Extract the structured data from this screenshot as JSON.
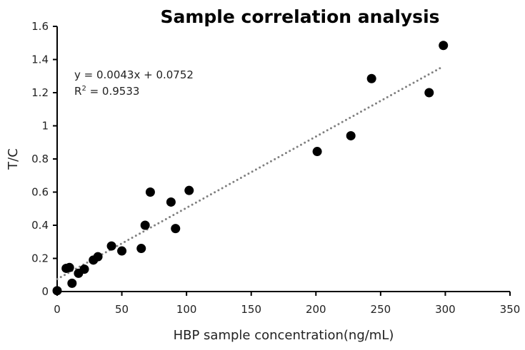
{
  "chart_data": {
    "type": "scatter",
    "title": "Sample correlation analysis",
    "xlabel": "HBP sample concentration(ng/mL)",
    "ylabel": "T/C",
    "xlim": [
      0,
      350
    ],
    "ylim": [
      0,
      1.6
    ],
    "xticks": [
      0,
      50,
      100,
      150,
      200,
      250,
      300,
      350
    ],
    "yticks": [
      "0",
      "0.2",
      "0.4",
      "0.6",
      "0.8",
      "1",
      "1.2",
      "1.4",
      "1.6"
    ],
    "grid": false,
    "marker_color": "#000000",
    "trendline_color": "#808080",
    "trendline": {
      "slope": 0.0043,
      "intercept": 0.0752,
      "x_range": [
        0,
        298
      ],
      "style": "dotted"
    },
    "annotation": {
      "equation": "y = 0.0043x + 0.0752",
      "r2_prefix": "R",
      "r2_sup": "2",
      "r2_value": " = 0.9533"
    },
    "points": [
      [
        0,
        0.005
      ],
      [
        7,
        0.14
      ],
      [
        9.5,
        0.145
      ],
      [
        11.5,
        0.05
      ],
      [
        16.5,
        0.11
      ],
      [
        21,
        0.135
      ],
      [
        28,
        0.19
      ],
      [
        31.5,
        0.21
      ],
      [
        42,
        0.275
      ],
      [
        50,
        0.245
      ],
      [
        65,
        0.26
      ],
      [
        68,
        0.4
      ],
      [
        72,
        0.6
      ],
      [
        88,
        0.54
      ],
      [
        91.5,
        0.38
      ],
      [
        102,
        0.61
      ],
      [
        201,
        0.845
      ],
      [
        227,
        0.94
      ],
      [
        243,
        1.285
      ],
      [
        287.5,
        1.2
      ],
      [
        298.5,
        1.485
      ]
    ]
  }
}
